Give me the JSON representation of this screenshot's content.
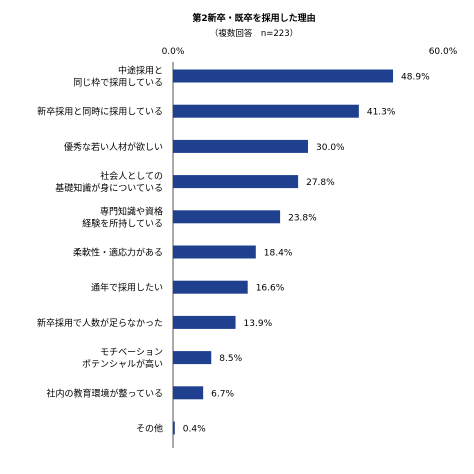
{
  "chart_data": {
    "type": "bar",
    "orientation": "horizontal",
    "title": "第2新卒・既卒を採用した理由",
    "subtitle": "（複数回答　n=223）",
    "xlim": [
      0,
      60
    ],
    "tick_labels": [
      "0.0%",
      "60.0%"
    ],
    "bar_color": "#1f3f8f",
    "grid": false,
    "categories": [
      [
        "中途採用と",
        "同じ枠で採用している"
      ],
      [
        "新卒採用と同時に採用している"
      ],
      [
        "優秀な若い人材が欲しい"
      ],
      [
        "社会人としての",
        "基礎知識が身についている"
      ],
      [
        "専門知識や資格",
        "経験を所持している"
      ],
      [
        "柔軟性・適応力がある"
      ],
      [
        "通年で採用したい"
      ],
      [
        "新卒採用で人数が足らなかった"
      ],
      [
        "モチベーション",
        "ポテンシャルが高い"
      ],
      [
        "社内の教育環境が整っている"
      ],
      [
        "その他"
      ]
    ],
    "values": [
      48.9,
      41.3,
      30.0,
      27.8,
      23.8,
      18.4,
      16.6,
      13.9,
      8.5,
      6.7,
      0.4
    ],
    "value_labels": [
      "48.9%",
      "41.3%",
      "30.0%",
      "27.8%",
      "23.8%",
      "18.4%",
      "16.6%",
      "13.9%",
      "8.5%",
      "6.7%",
      "0.4%"
    ]
  }
}
